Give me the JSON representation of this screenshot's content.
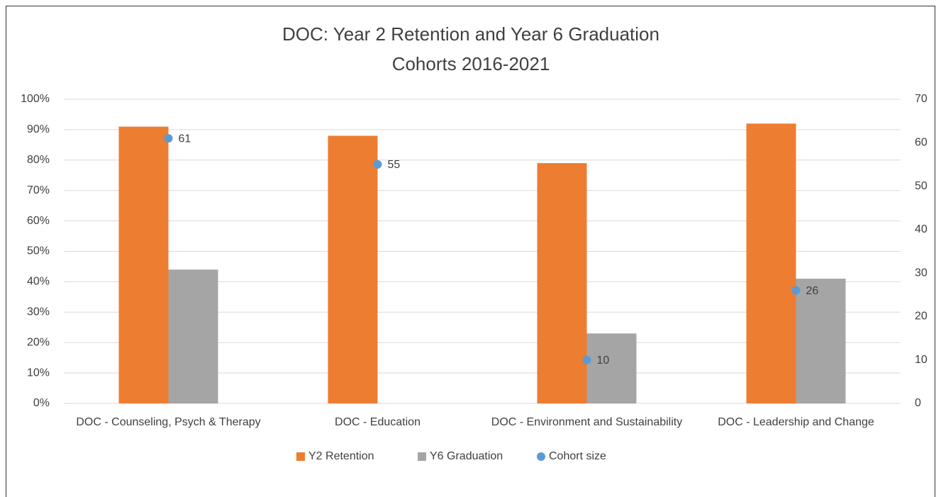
{
  "chart_data": {
    "type": "bar",
    "title": [
      "DOC: Year 2 Retention and Year 6 Graduation",
      "Cohorts 2016-2021"
    ],
    "categories": [
      "DOC - Counseling, Psych & Therapy",
      "DOC - Education",
      "DOC - Environment and Sustainability",
      "DOC - Leadership and Change"
    ],
    "series": [
      {
        "name": "Y2 Retention",
        "color": "#ed7d31",
        "type": "bar",
        "values": [
          91,
          88,
          79,
          92
        ]
      },
      {
        "name": "Y6 Graduation",
        "color": "#a5a5a5",
        "type": "bar",
        "values": [
          44,
          null,
          23,
          41
        ]
      },
      {
        "name": "Cohort size",
        "color": "#5b9bd5",
        "type": "scatter",
        "axis": "y2",
        "values": [
          61,
          55,
          10,
          26
        ]
      }
    ],
    "ylim": [
      0,
      100
    ],
    "yticks": [
      {
        "value": 0,
        "label": "0%"
      },
      {
        "value": 10,
        "label": "10%"
      },
      {
        "value": 20,
        "label": "20%"
      },
      {
        "value": 30,
        "label": "30%"
      },
      {
        "value": 40,
        "label": "40%"
      },
      {
        "value": 50,
        "label": "50%"
      },
      {
        "value": 60,
        "label": "60%"
      },
      {
        "value": 70,
        "label": "70%"
      },
      {
        "value": 80,
        "label": "80%"
      },
      {
        "value": 90,
        "label": "90%"
      },
      {
        "value": 100,
        "label": "100%"
      }
    ],
    "y2lim": [
      0,
      70
    ],
    "y2ticks": [
      0,
      10,
      20,
      30,
      40,
      50,
      60,
      70
    ],
    "grid": true,
    "legend": "bottom"
  }
}
